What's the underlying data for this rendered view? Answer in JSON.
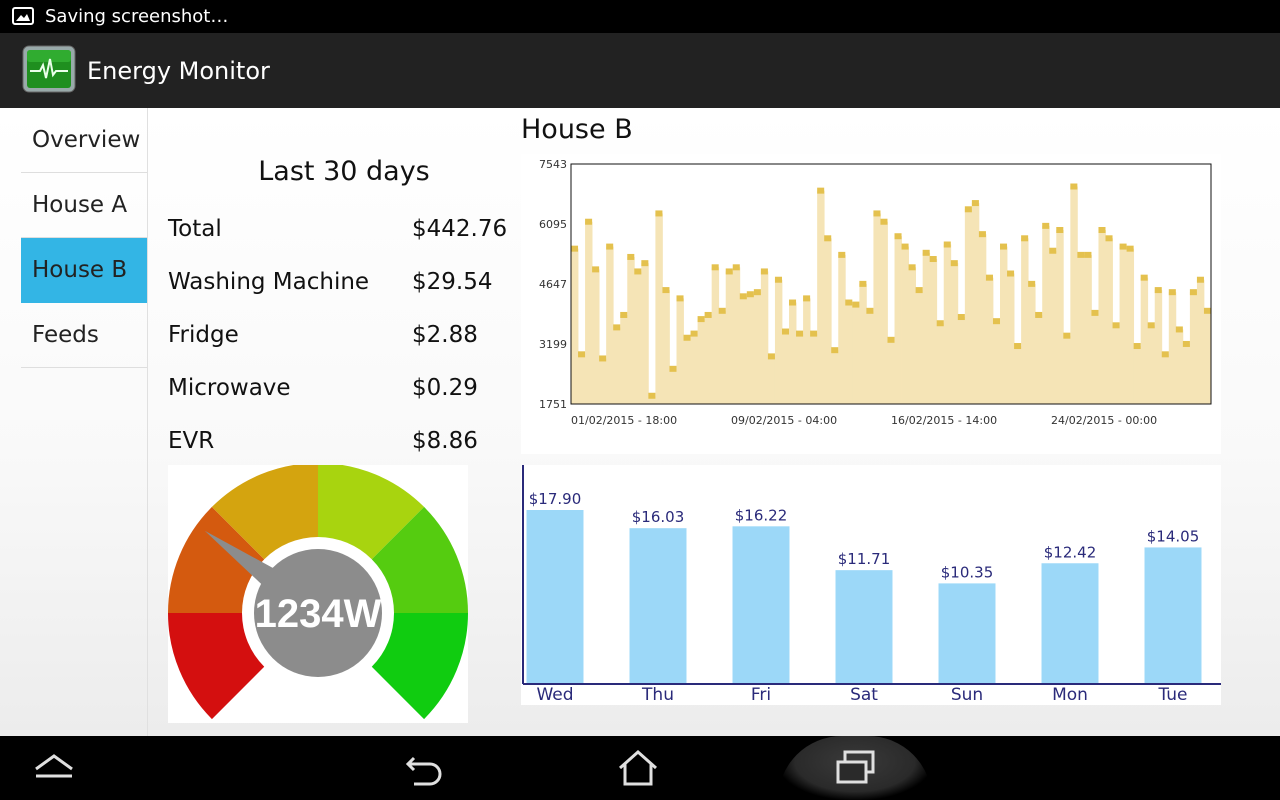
{
  "status_bar": {
    "notification_text": "Saving screenshot…",
    "icon": "image-icon"
  },
  "action_bar": {
    "title": "Energy Monitor",
    "icon": "heartbeat-monitor-icon"
  },
  "sidebar": {
    "items": [
      {
        "label": "Overview",
        "active": false
      },
      {
        "label": "House A",
        "active": false
      },
      {
        "label": "House B",
        "active": true
      },
      {
        "label": "Feeds",
        "active": false
      }
    ]
  },
  "summary": {
    "title": "Last 30 days",
    "rows": [
      {
        "label": "Total",
        "value": "$442.76"
      },
      {
        "label": "Washing Machine",
        "value": "$29.54"
      },
      {
        "label": "Fridge",
        "value": "$2.88"
      },
      {
        "label": "Microwave",
        "value": "$0.29"
      },
      {
        "label": "EVR",
        "value": "$8.86"
      }
    ]
  },
  "gauge": {
    "reading": "1234W",
    "needle_fraction": 0.3
  },
  "main": {
    "title": "House B"
  },
  "colors": {
    "accent": "#33b5e5",
    "line_fill": "#f5e4b6",
    "line_marker": "#e4c14e",
    "bar_fill": "#9cd8f8",
    "bar_text": "#2a2a7a"
  },
  "chart_data": [
    {
      "type": "area",
      "y_ticks": [
        "7543",
        "6095",
        "4647",
        "3199",
        "1751"
      ],
      "ylim": [
        1751,
        7543
      ],
      "x_ticks": [
        "01/02/2015 - 18:00",
        "09/02/2015 - 04:00",
        "16/02/2015 - 14:00",
        "24/02/2015 - 00:00"
      ],
      "values": [
        5500,
        2950,
        6150,
        5000,
        2850,
        5550,
        3600,
        3900,
        5300,
        4950,
        5150,
        1950,
        6350,
        4500,
        2600,
        4300,
        3350,
        3450,
        3800,
        3900,
        5050,
        4000,
        4950,
        5050,
        4350,
        4400,
        4450,
        4950,
        2900,
        4750,
        3500,
        4200,
        3450,
        4300,
        3450,
        6900,
        5750,
        3050,
        5350,
        4200,
        4150,
        4650,
        4000,
        6350,
        6150,
        3300,
        5800,
        5550,
        5050,
        4500,
        5400,
        5250,
        3700,
        5600,
        5150,
        3850,
        6450,
        6600,
        5850,
        4800,
        3750,
        5550,
        4900,
        3150,
        5750,
        4650,
        3900,
        6050,
        5450,
        5950,
        3400,
        7000,
        5350,
        5350,
        3950,
        5950,
        5750,
        3650,
        5550,
        5500,
        3150,
        4800,
        3650,
        4500,
        2950,
        4450,
        3550,
        3200,
        4450,
        4750,
        4000
      ]
    },
    {
      "type": "bar",
      "categories": [
        "Wed",
        "Thu",
        "Fri",
        "Sat",
        "Sun",
        "Mon",
        "Tue"
      ],
      "values": [
        17.9,
        16.03,
        16.22,
        11.71,
        10.35,
        12.42,
        14.05
      ],
      "labels": [
        "$17.90",
        "$16.03",
        "$16.22",
        "$11.71",
        "$10.35",
        "$12.42",
        "$14.05"
      ],
      "ylim": [
        0,
        17.9
      ]
    }
  ],
  "nav_bar": {
    "up": "chevron-up-icon",
    "back": "back-icon",
    "home": "home-icon",
    "recent": "recent-apps-icon"
  }
}
